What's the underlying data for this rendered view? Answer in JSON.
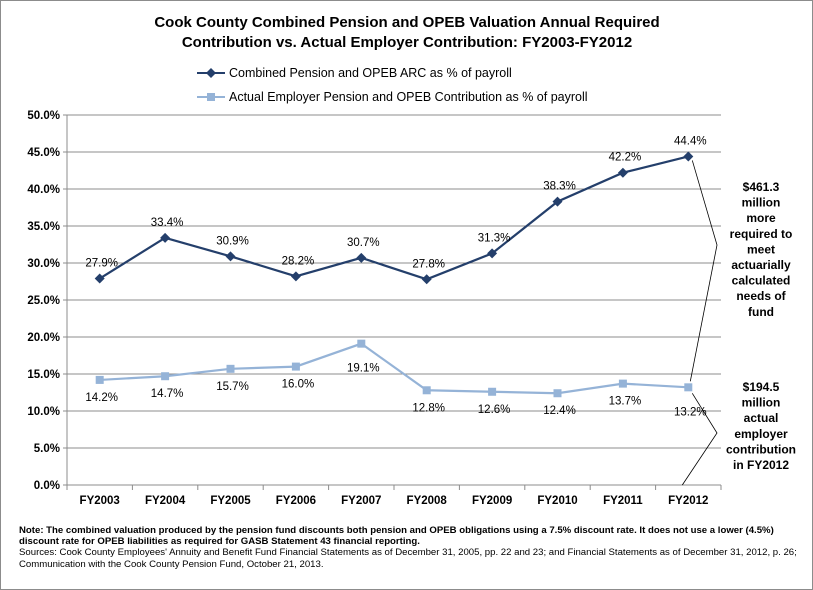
{
  "chart_data": {
    "type": "line",
    "title_lines": [
      "Cook County Combined Pension and OPEB Valuation Annual Required",
      "Contribution vs. Actual Employer Contribution: FY2003-FY2012"
    ],
    "categories": [
      "FY2003",
      "FY2004",
      "FY2005",
      "FY2006",
      "FY2007",
      "FY2008",
      "FY2009",
      "FY2010",
      "FY2011",
      "FY2012"
    ],
    "ylim": [
      0,
      50
    ],
    "yticks": [
      "0.0%",
      "5.0%",
      "10.0%",
      "15.0%",
      "20.0%",
      "25.0%",
      "30.0%",
      "35.0%",
      "40.0%",
      "45.0%",
      "50.0%"
    ],
    "series": [
      {
        "name": "Combined Pension and OPEB ARC as % of payroll",
        "color": "#243f6b",
        "marker": "diamond",
        "values": [
          27.9,
          33.4,
          30.9,
          28.2,
          30.7,
          27.8,
          31.3,
          38.3,
          42.2,
          44.4
        ],
        "labels": [
          "27.9%",
          "33.4%",
          "30.9%",
          "28.2%",
          "30.7%",
          "27.8%",
          "31.3%",
          "38.3%",
          "42.2%",
          "44.4%"
        ]
      },
      {
        "name": "Actual Employer Pension and OPEB Contribution as % of payroll",
        "color": "#95b3d7",
        "marker": "square",
        "values": [
          14.2,
          14.7,
          15.7,
          16.0,
          19.1,
          12.8,
          12.6,
          12.4,
          13.7,
          13.2
        ],
        "labels": [
          "14.2%",
          "14.7%",
          "15.7%",
          "16.0%",
          "19.1%",
          "12.8%",
          "12.6%",
          "12.4%",
          "13.7%",
          "13.2%"
        ]
      }
    ],
    "annotations": [
      {
        "lines": [
          "$461.3",
          "million",
          "more",
          "required to",
          "meet",
          "actuarially",
          "calculated",
          "needs of",
          "fund"
        ]
      },
      {
        "lines": [
          "$194.5",
          "million",
          "actual",
          "employer",
          "contribution",
          "in FY2012"
        ]
      }
    ]
  },
  "notes": {
    "note": "Note: The combined valuation produced by the pension fund discounts both pension and OPEB obligations using a 7.5% discount rate. It does not use a lower (4.5%) discount rate for OPEB liabilities as required for GASB Statement 43 financial reporting.",
    "sources": "Sources: Cook County Employees' Annuity and Benefit Fund Financial Statements as of December 31, 2005, pp. 22 and 23; and Financial Statements as of December 31, 2012, p. 26; Communication with the Cook County Pension Fund, October 21, 2013."
  }
}
